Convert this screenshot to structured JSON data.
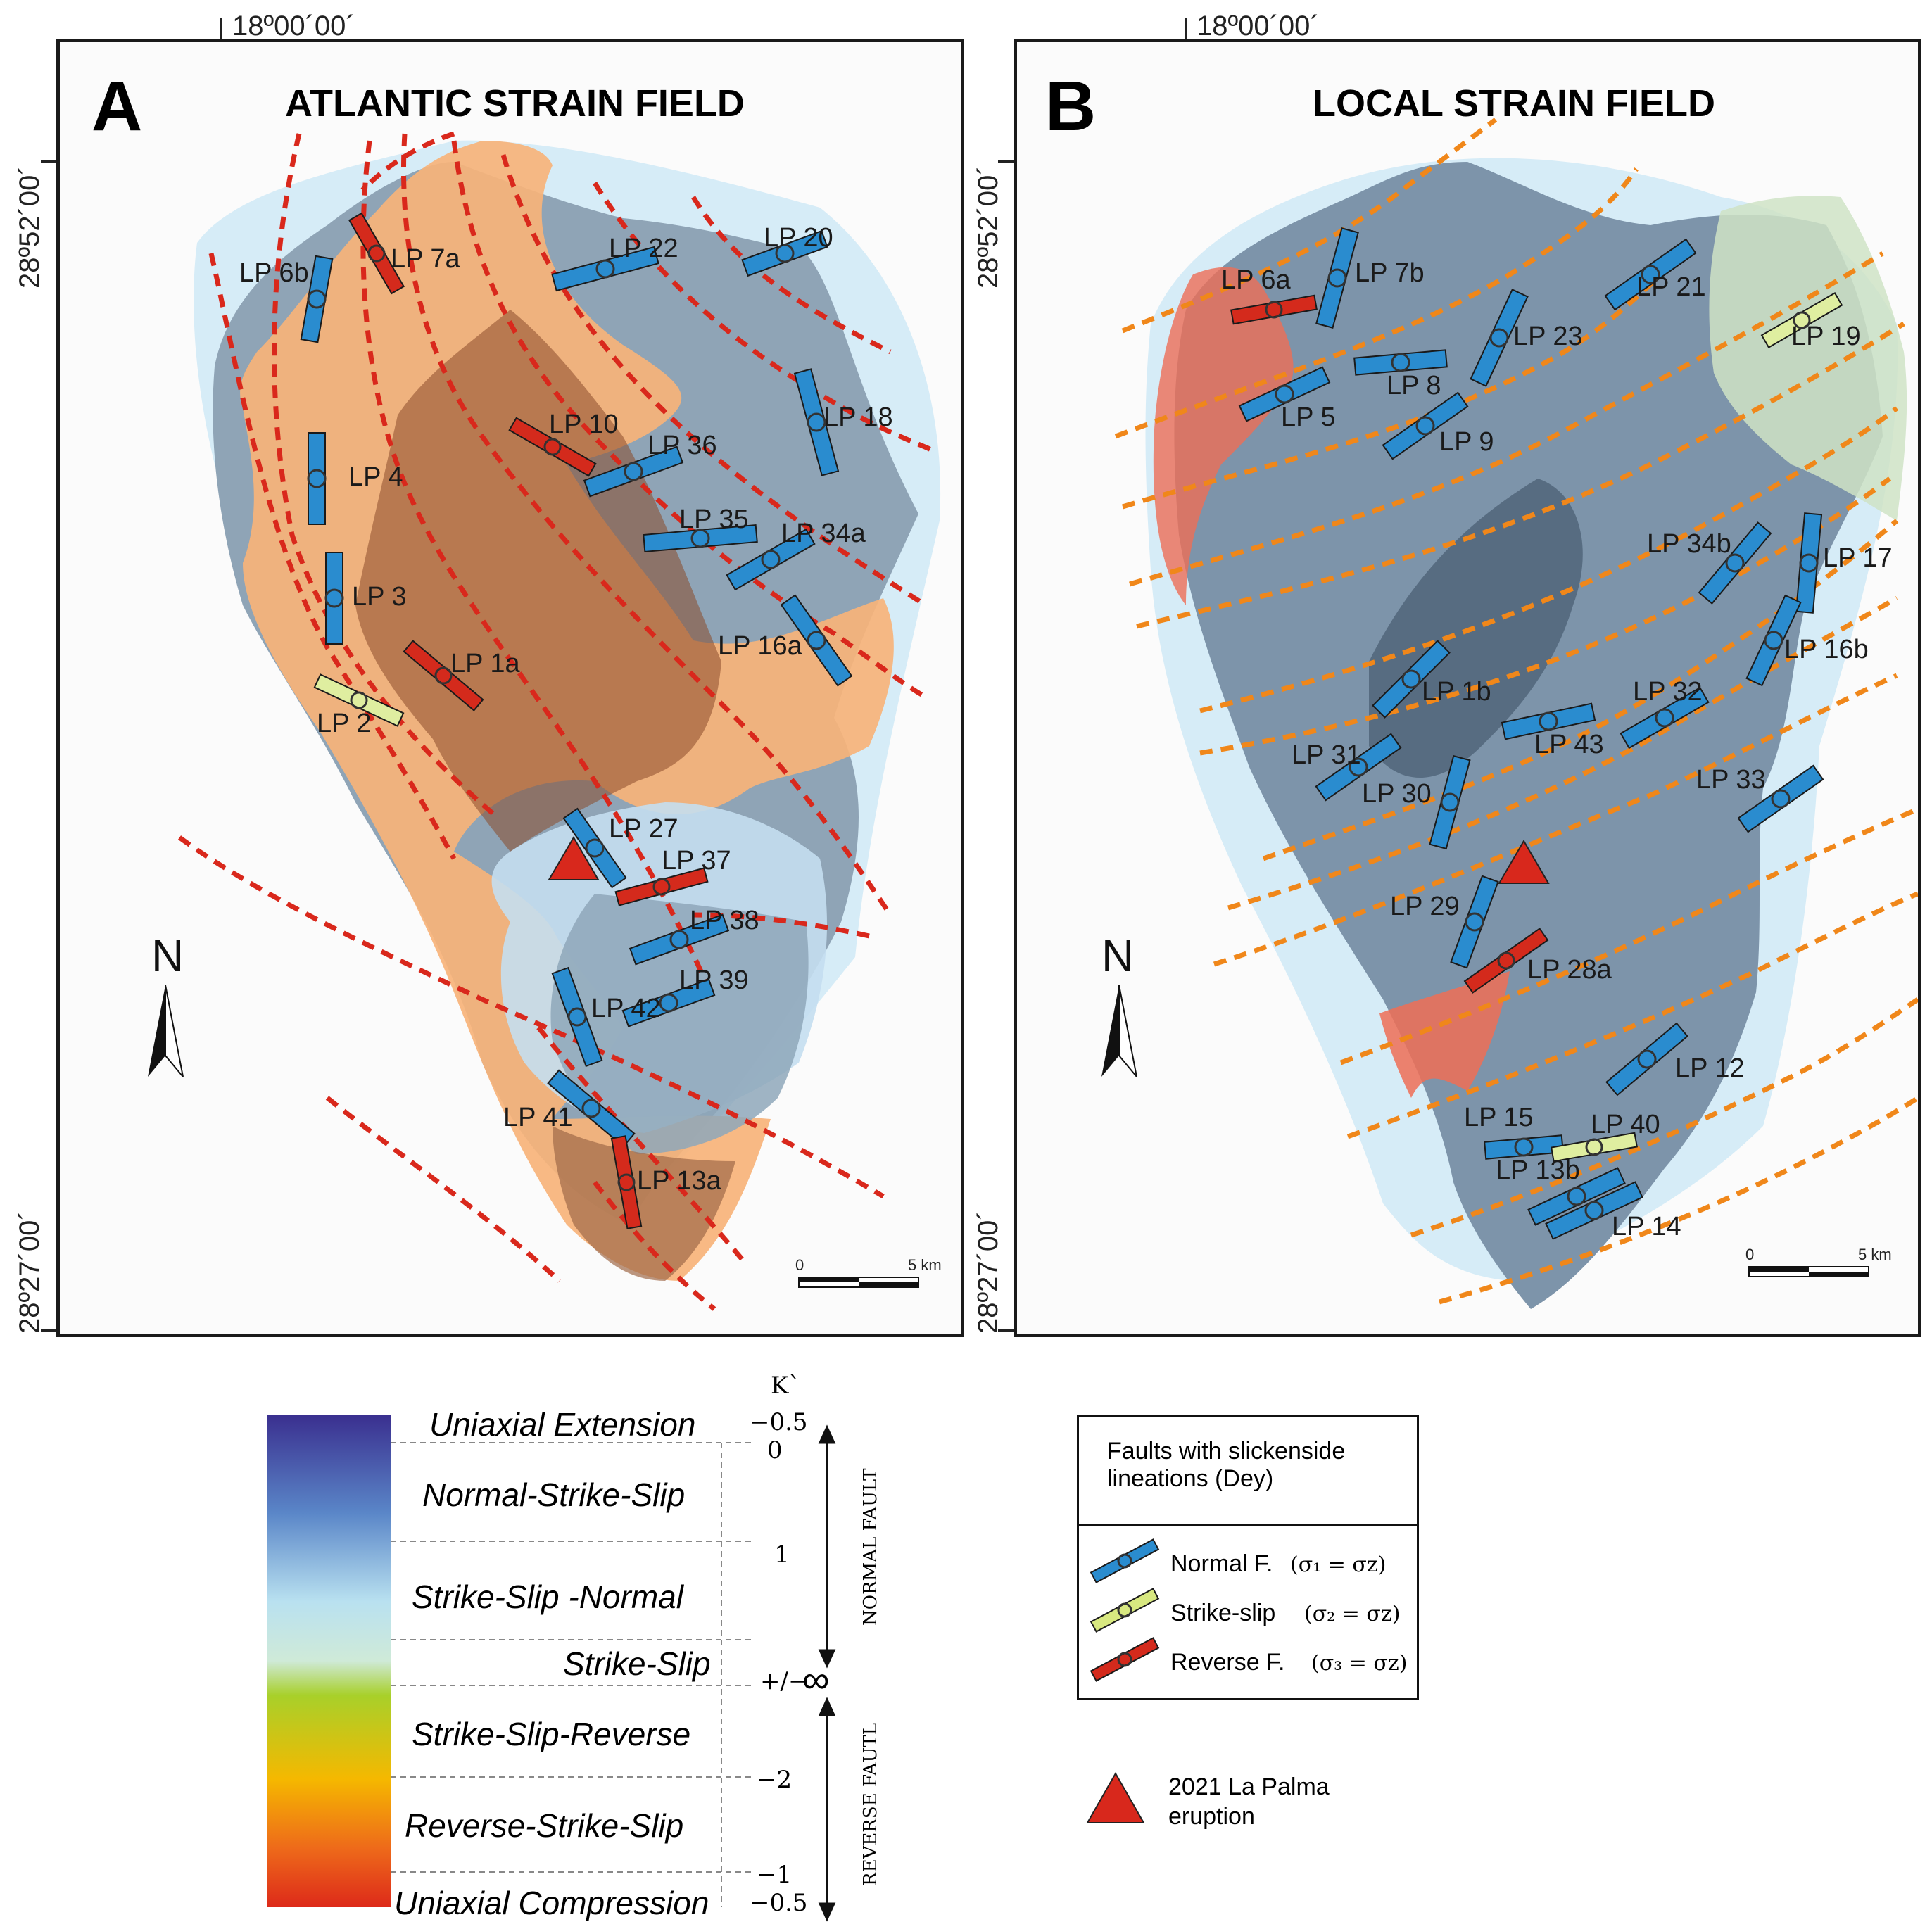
{
  "coords": {
    "a_lon": "18º00´00´",
    "a_lat_top": "28º52´00´",
    "a_lat_bottom": "28º27´00´",
    "b_lon": "18º00´00´",
    "b_lat_top": "28º52´00´",
    "b_lat_bottom": "28º27´00´"
  },
  "panel_a": {
    "letter": "A",
    "title": "ATLANTIC STRAIN FIELD",
    "north": "N",
    "scale_zero": "0",
    "scale_end": "5 km",
    "labels": [
      "LP 6b",
      "LP 7a",
      "LP 22",
      "LP 20",
      "LP 4",
      "LP 10",
      "LP 36",
      "LP 18",
      "LP 35",
      "LP 34a",
      "LP 3",
      "LP 16a",
      "LP 1a",
      "LP 2",
      "LP 27",
      "LP 37",
      "LP 38",
      "LP 39",
      "LP 42",
      "LP 41",
      "LP 13a"
    ]
  },
  "panel_b": {
    "letter": "B",
    "title": "LOCAL STRAIN FIELD",
    "north": "N",
    "scale_zero": "0",
    "scale_end": "5 km",
    "labels": [
      "LP 6a",
      "LP 7b",
      "LP 21",
      "LP 23",
      "LP 19",
      "LP 8",
      "LP 5",
      "LP 9",
      "LP 34b",
      "LP 17",
      "LP 16b",
      "LP 1b",
      "LP 32",
      "LP 43",
      "LP 31",
      "LP 30",
      "LP 33",
      "LP 29",
      "LP 28a",
      "LP 12",
      "LP 15",
      "LP 40",
      "LP 13b",
      "LP 14"
    ]
  },
  "strain_legend": {
    "k_label": "K`",
    "categories": [
      "Uniaxial Extension",
      "Normal-Strike-Slip",
      "Strike-Slip -Normal",
      "Strike-Slip",
      "Strike-Slip-Reverse",
      "Reverse-Strike-Slip",
      "Uniaxial Compression"
    ],
    "values": [
      "−0.5",
      "0",
      "1",
      "+/−",
      "−2",
      "−1",
      "−0.5"
    ],
    "infinity": "∞",
    "normal_fault": "NORMAL FAULT",
    "reverse_fault": "REVERSE FAUTL",
    "colors": [
      "#3a2f8f",
      "#5a86c8",
      "#b9e1f0",
      "#a8d02a",
      "#f5b800",
      "#ee6a1a",
      "#dd2a1a"
    ]
  },
  "fault_legend": {
    "title_line1": "Faults with slickenside",
    "title_line2": "lineations (Dey)",
    "items": [
      {
        "label": "Normal F.",
        "formula": "(σ₁ = σz)",
        "color": "#2a8ccf"
      },
      {
        "label": "Strike-slip",
        "formula": "(σ₂ = σz)",
        "color": "#d8e880"
      },
      {
        "label": "Reverse F.",
        "formula": "(σ₃ = σz)",
        "color": "#d42a1c"
      }
    ]
  },
  "eruption": {
    "line1": "2021 La Palma",
    "line2": "eruption",
    "color": "#d8281c"
  }
}
